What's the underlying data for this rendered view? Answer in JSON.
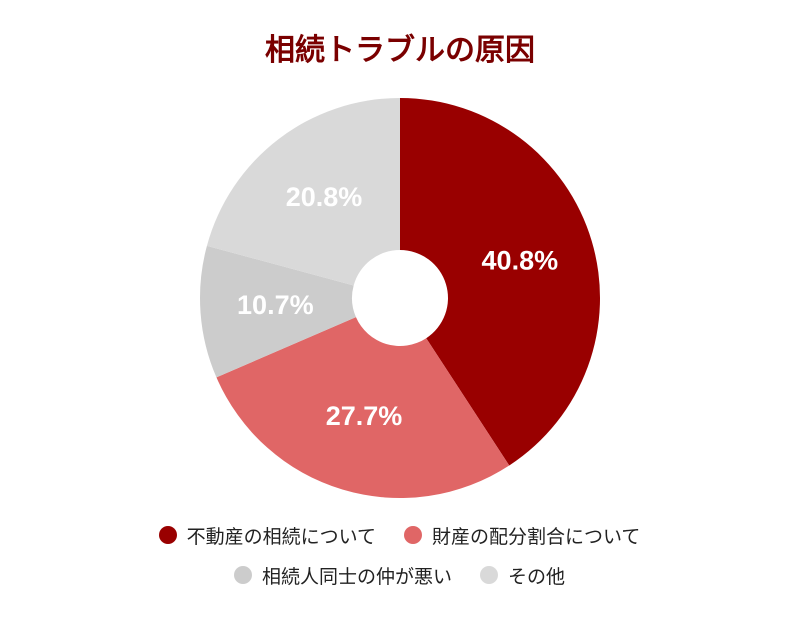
{
  "chart_data": {
    "type": "donut",
    "title": "相続トラブルの原因",
    "categories": [
      "不動産の相続について",
      "財産の配分割合について",
      "相続人同士の仲が悪い",
      "その他"
    ],
    "values": [
      40.8,
      27.7,
      10.7,
      20.8
    ],
    "value_labels": [
      "40.8%",
      "27.7%",
      "10.7%",
      "20.8%"
    ],
    "colors": [
      "#990000",
      "#e06666",
      "#cccccc",
      "#d9d9d9"
    ],
    "legend": "bottom"
  }
}
